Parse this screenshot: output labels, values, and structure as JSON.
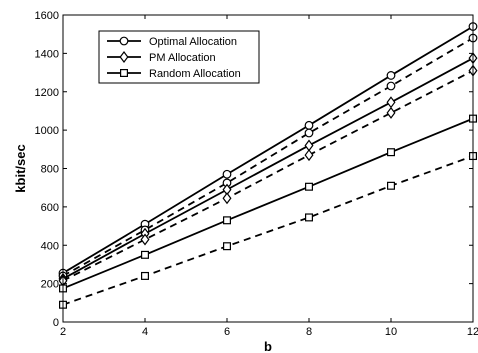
{
  "chart_data": {
    "type": "line",
    "title": "",
    "xlabel": "b",
    "ylabel": "kbit/sec",
    "x": [
      2,
      4,
      6,
      8,
      10,
      12
    ],
    "xlim": [
      2,
      12
    ],
    "ylim": [
      0,
      1600
    ],
    "xticks": [
      "2",
      "4",
      "6",
      "8",
      "10",
      "12"
    ],
    "yticks": [
      "0",
      "200",
      "400",
      "600",
      "800",
      "1000",
      "1200",
      "1400",
      "1600"
    ],
    "grid": false,
    "legend_position": "top-left",
    "legend": [
      {
        "label": "Optimal Allocation",
        "marker": "circle"
      },
      {
        "label": "PM Allocation",
        "marker": "diamond"
      },
      {
        "label": "Random Allocation",
        "marker": "square"
      }
    ],
    "series": [
      {
        "group": "Optimal Allocation",
        "style": "solid",
        "marker": "circle",
        "values": [
          255,
          510,
          770,
          1025,
          1285,
          1540
        ]
      },
      {
        "group": "Optimal Allocation",
        "style": "dashed",
        "marker": "circle",
        "values": [
          240,
          480,
          725,
          985,
          1230,
          1480
        ]
      },
      {
        "group": "PM Allocation",
        "style": "solid",
        "marker": "diamond",
        "values": [
          225,
          460,
          690,
          920,
          1145,
          1375
        ]
      },
      {
        "group": "PM Allocation",
        "style": "dashed",
        "marker": "diamond",
        "values": [
          215,
          430,
          645,
          870,
          1090,
          1310
        ]
      },
      {
        "group": "Random Allocation",
        "style": "solid",
        "marker": "square",
        "values": [
          175,
          350,
          530,
          705,
          885,
          1060
        ]
      },
      {
        "group": "Random Allocation",
        "style": "dashed",
        "marker": "square",
        "values": [
          90,
          240,
          395,
          545,
          710,
          865
        ]
      }
    ]
  }
}
